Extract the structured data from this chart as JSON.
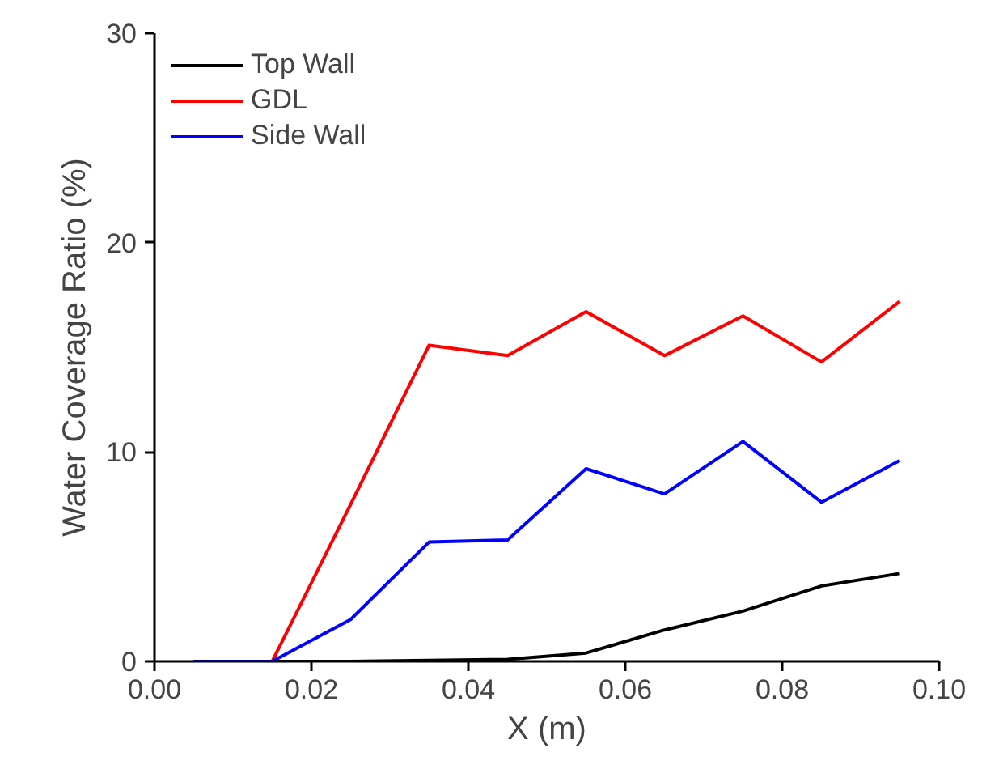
{
  "chart_data": {
    "type": "line",
    "xlabel": "X (m)",
    "ylabel": "Water Coverage Ratio (%)",
    "x": [
      0.005,
      0.015,
      0.025,
      0.035,
      0.045,
      0.055,
      0.065,
      0.075,
      0.085,
      0.095
    ],
    "series": [
      {
        "name": "Top Wall",
        "color": "#000000",
        "values": [
          0,
          0,
          0,
          0.05,
          0.1,
          0.4,
          1.5,
          2.4,
          3.6,
          4.2
        ]
      },
      {
        "name": "GDL",
        "color": "#ff0000",
        "values": [
          0,
          0,
          7.5,
          15.1,
          14.6,
          16.7,
          14.6,
          16.5,
          14.3,
          17.2
        ]
      },
      {
        "name": "Side Wall",
        "color": "#0000ff",
        "values": [
          0,
          0,
          2.0,
          5.7,
          5.8,
          9.2,
          8.0,
          10.5,
          7.6,
          9.6
        ]
      }
    ],
    "xlim": [
      0.0,
      0.1
    ],
    "xticks": [
      {
        "value": 0.0,
        "label": "0.00"
      },
      {
        "value": 0.02,
        "label": "0.02"
      },
      {
        "value": 0.04,
        "label": "0.04"
      },
      {
        "value": 0.06,
        "label": "0.06"
      },
      {
        "value": 0.08,
        "label": "0.08"
      },
      {
        "value": 0.1,
        "label": "0.10"
      }
    ],
    "ylim": [
      0,
      30
    ],
    "yticks": [
      0,
      10,
      20,
      30
    ],
    "grid": false,
    "legend": "top left",
    "marker": "none",
    "line_style": "solid"
  }
}
